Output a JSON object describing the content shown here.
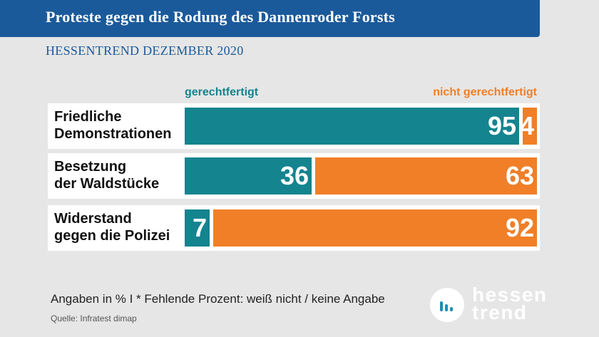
{
  "header": {
    "title": "Proteste gegen die Rodung des Dannenroder Forsts",
    "subtitle": "HESSENTREND DEZEMBER 2020"
  },
  "legend": {
    "left": "gerechtfertigt",
    "right": "nicht gerechtfertigt"
  },
  "colors": {
    "yes": "#14848f",
    "no": "#f07f27",
    "title_bar": "#1b5a9a"
  },
  "chart_data": {
    "type": "bar",
    "orientation": "horizontal",
    "stacked": true,
    "categories": [
      "Friedliche Demonstrationen",
      "Besetzung der Waldstücke",
      "Widerstand gegen die Polizei"
    ],
    "category_lines": [
      [
        "Friedliche",
        "Demonstrationen"
      ],
      [
        "Besetzung",
        "der Waldstücke"
      ],
      [
        "Widerstand",
        "gegen die Polizei"
      ]
    ],
    "series": [
      {
        "name": "gerechtfertigt",
        "values": [
          95,
          36,
          7
        ]
      },
      {
        "name": "nicht gerechtfertigt",
        "values": [
          4,
          63,
          92
        ]
      }
    ],
    "xlim": [
      0,
      100
    ]
  },
  "footer": {
    "note": "Angaben in %  I * Fehlende Prozent: weiß nicht / keine Angabe",
    "source": "Quelle:  Infratest dimap",
    "logo_line1": "hessen",
    "logo_line2": "trend"
  }
}
